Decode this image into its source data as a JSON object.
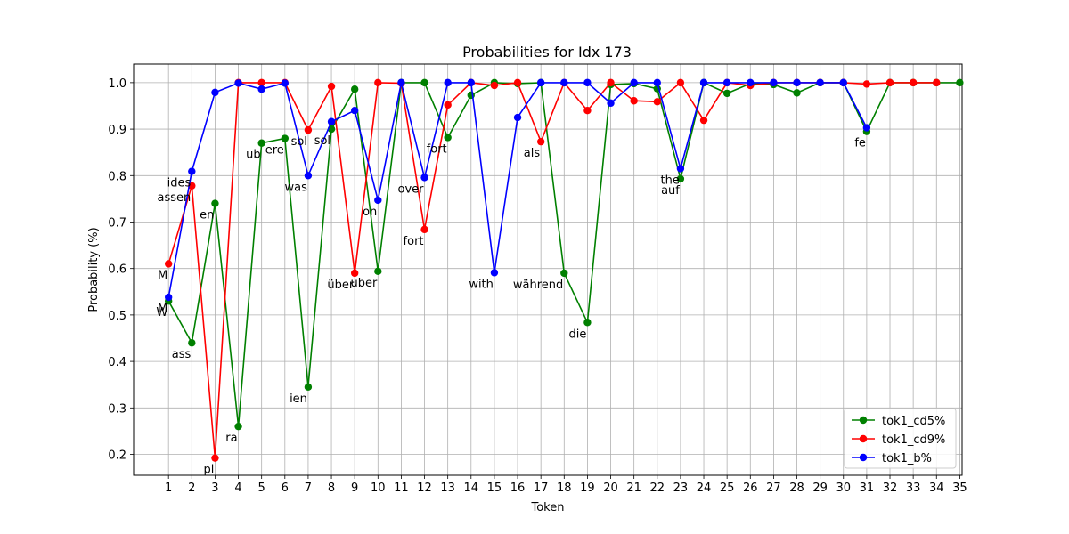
{
  "chart_data": {
    "type": "line",
    "title": "Probabilities for Idx 173",
    "xlabel": "Token",
    "ylabel": "Probability (%)",
    "xlim": [
      -0.5,
      35.1
    ],
    "ylim": [
      0.155,
      1.04
    ],
    "x_ticks": [
      1,
      2,
      3,
      4,
      5,
      6,
      7,
      8,
      9,
      10,
      11,
      12,
      13,
      14,
      15,
      16,
      17,
      18,
      19,
      20,
      21,
      22,
      23,
      24,
      25,
      26,
      27,
      28,
      29,
      30,
      31,
      32,
      33,
      34,
      35
    ],
    "y_ticks": [
      0.2,
      0.3,
      0.4,
      0.5,
      0.6,
      0.7,
      0.8,
      0.9,
      1.0
    ],
    "y_tick_labels": [
      "0.2",
      "0.3",
      "0.4",
      "0.5",
      "0.6",
      "0.7",
      "0.8",
      "0.9",
      "1.0"
    ],
    "grid": true,
    "legend_position": "bottom-right",
    "series": [
      {
        "name": "tok1_cd5%",
        "color": "#008000",
        "x": [
          1,
          2,
          3,
          4,
          5,
          6,
          7,
          8,
          9,
          10,
          11,
          12,
          13,
          14,
          15,
          16,
          17,
          18,
          19,
          20,
          21,
          22,
          23,
          24,
          25,
          26,
          27,
          28,
          29,
          30,
          31,
          32,
          33,
          34,
          35
        ],
        "values": [
          0.53,
          0.44,
          0.74,
          0.26,
          0.87,
          0.88,
          0.345,
          0.9,
          0.986,
          0.594,
          1.0,
          1.0,
          0.882,
          0.973,
          1.0,
          0.998,
          1.0,
          0.59,
          0.484,
          0.996,
          0.998,
          0.987,
          0.793,
          1.0,
          0.977,
          0.998,
          0.996,
          0.978,
          1.0,
          1.0,
          0.895,
          1.0,
          1.0,
          1.0,
          1.0
        ]
      },
      {
        "name": "tok1_cd9%",
        "color": "#ff0000",
        "x": [
          1,
          2,
          3,
          4,
          5,
          6,
          7,
          8,
          9,
          10,
          11,
          12,
          13,
          14,
          15,
          16,
          17,
          18,
          19,
          20,
          21,
          22,
          23,
          24,
          25,
          26,
          27,
          28,
          29,
          30,
          31,
          32,
          33,
          34
        ],
        "values": [
          0.61,
          0.778,
          0.192,
          1.0,
          1.0,
          1.0,
          0.898,
          0.992,
          0.59,
          1.0,
          0.999,
          0.684,
          0.952,
          1.0,
          0.994,
          1.0,
          0.873,
          1.0,
          0.94,
          1.0,
          0.961,
          0.959,
          1.0,
          0.919,
          1.0,
          0.994,
          1.0,
          1.0,
          1.0,
          1.0,
          0.997,
          1.0,
          1.0,
          1.0
        ]
      },
      {
        "name": "tok1_b%",
        "color": "#0000ff",
        "x": [
          1,
          2,
          3,
          4,
          5,
          6,
          7,
          8,
          9,
          10,
          11,
          12,
          13,
          14,
          15,
          16,
          17,
          18,
          19,
          20,
          21,
          22,
          23,
          24,
          25,
          26,
          27,
          28,
          29,
          30,
          31
        ],
        "values": [
          0.538,
          0.809,
          0.979,
          0.999,
          0.986,
          0.999,
          0.8,
          0.916,
          0.94,
          0.747,
          1.0,
          0.796,
          1.0,
          1.0,
          0.591,
          0.925,
          1.0,
          1.0,
          1.0,
          0.956,
          1.0,
          1.0,
          0.815,
          1.0,
          1.0,
          1.0,
          1.0,
          1.0,
          1.0,
          1.0,
          0.903
        ]
      }
    ],
    "annotations": [
      {
        "text": "W",
        "x": 1,
        "y": 0.53
      },
      {
        "text": "M",
        "x": 1,
        "y": 0.538
      },
      {
        "text": "M",
        "x": 1,
        "y": 0.61
      },
      {
        "text": "ass",
        "x": 2,
        "y": 0.44
      },
      {
        "text": "assen",
        "x": 2,
        "y": 0.778
      },
      {
        "text": "ides",
        "x": 2,
        "y": 0.809
      },
      {
        "text": "en",
        "x": 3,
        "y": 0.74
      },
      {
        "text": "pl",
        "x": 3,
        "y": 0.192
      },
      {
        "text": "ra",
        "x": 4,
        "y": 0.26
      },
      {
        "text": "ub",
        "x": 5,
        "y": 0.87
      },
      {
        "text": "ere",
        "x": 6,
        "y": 0.88
      },
      {
        "text": "ien",
        "x": 7,
        "y": 0.345
      },
      {
        "text": "sol",
        "x": 7,
        "y": 0.898
      },
      {
        "text": "was",
        "x": 7,
        "y": 0.8
      },
      {
        "text": "sol",
        "x": 8,
        "y": 0.9
      },
      {
        "text": "über",
        "x": 9,
        "y": 0.59
      },
      {
        "text": "uber",
        "x": 10,
        "y": 0.594
      },
      {
        "text": "on",
        "x": 10,
        "y": 0.747
      },
      {
        "text": "over",
        "x": 12,
        "y": 0.796
      },
      {
        "text": "fort",
        "x": 12,
        "y": 0.684
      },
      {
        "text": "fort",
        "x": 13,
        "y": 0.882
      },
      {
        "text": "with",
        "x": 15,
        "y": 0.591
      },
      {
        "text": "als",
        "x": 17,
        "y": 0.873
      },
      {
        "text": "während",
        "x": 18,
        "y": 0.59
      },
      {
        "text": "die",
        "x": 19,
        "y": 0.484
      },
      {
        "text": "the",
        "x": 23,
        "y": 0.815
      },
      {
        "text": "auf",
        "x": 23,
        "y": 0.793
      },
      {
        "text": "fe",
        "x": 31,
        "y": 0.895
      }
    ]
  }
}
